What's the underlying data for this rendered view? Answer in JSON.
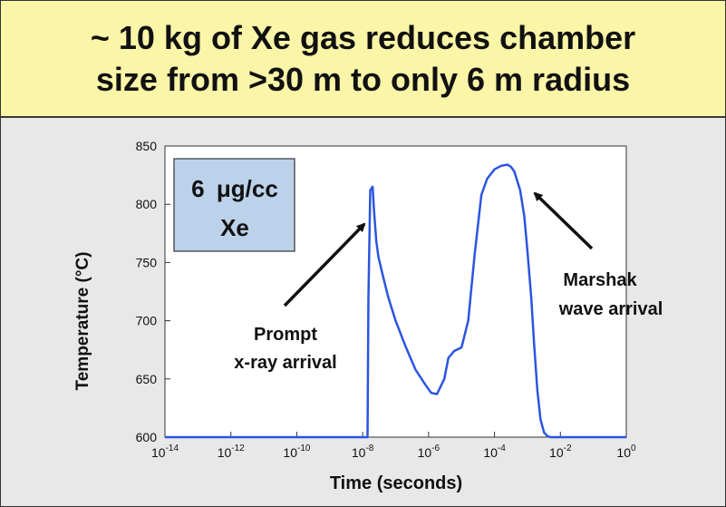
{
  "header": {
    "title_line1": "~ 10 kg of Xe gas reduces chamber",
    "title_line2": "size from >30 m to only 6 m radius"
  },
  "colors": {
    "header_bg": "#fbf5a8",
    "slide_bg": "#e8e8e8",
    "series": "#2b55e0",
    "inset_box": "#bcd2ea"
  },
  "chart_data": {
    "type": "line",
    "xlabel": "Time (seconds)",
    "ylabel": "Temperature (°C)",
    "xscale": "log",
    "xlim": [
      1e-14,
      1
    ],
    "ylim": [
      600,
      850
    ],
    "xtick_exponents": [
      "-14",
      "-12",
      "-10",
      "-8",
      "-6",
      "-4",
      "-2",
      "0"
    ],
    "xtick_base": "10",
    "yticks": [
      600,
      650,
      700,
      750,
      800,
      850
    ],
    "grid": false,
    "legend": "none",
    "series": [
      {
        "x": [
          1e-14,
          1e-09,
          1.4e-08,
          1.5e-08,
          1.7e-08,
          2e-08,
          2.2e-08,
          2.6e-08,
          3e-08,
          4e-08,
          6e-08,
          1e-07,
          2e-07,
          4e-07,
          8e-07,
          1.2e-06,
          1.8e-06,
          3e-06,
          4e-06,
          6e-06,
          1e-05,
          1.6e-05,
          2.5e-05,
          4e-05,
          6e-05,
          0.0001,
          0.00016,
          0.00025,
          0.00032,
          0.0004,
          0.0006,
          0.0008,
          0.001,
          0.0013,
          0.0016,
          0.002,
          0.0025,
          0.0032,
          0.004,
          0.005,
          0.01,
          1
        ],
        "y": [
          600,
          600,
          600,
          720,
          812,
          815,
          795,
          768,
          755,
          740,
          720,
          700,
          678,
          658,
          645,
          638,
          637,
          650,
          668,
          674,
          677,
          700,
          757,
          808,
          822,
          830,
          833,
          834,
          832,
          828,
          812,
          790,
          760,
          720,
          680,
          640,
          615,
          604,
          601,
          600,
          600,
          600
        ]
      }
    ],
    "annotations": [
      {
        "text_lines": [
          "Prompt",
          "x-ray arrival"
        ]
      },
      {
        "text_lines": [
          "Marshak",
          "wave arrival"
        ]
      }
    ],
    "inset_label": {
      "line1_value": "6",
      "line1_unit": "μg/cc",
      "line2": "Xe"
    }
  }
}
